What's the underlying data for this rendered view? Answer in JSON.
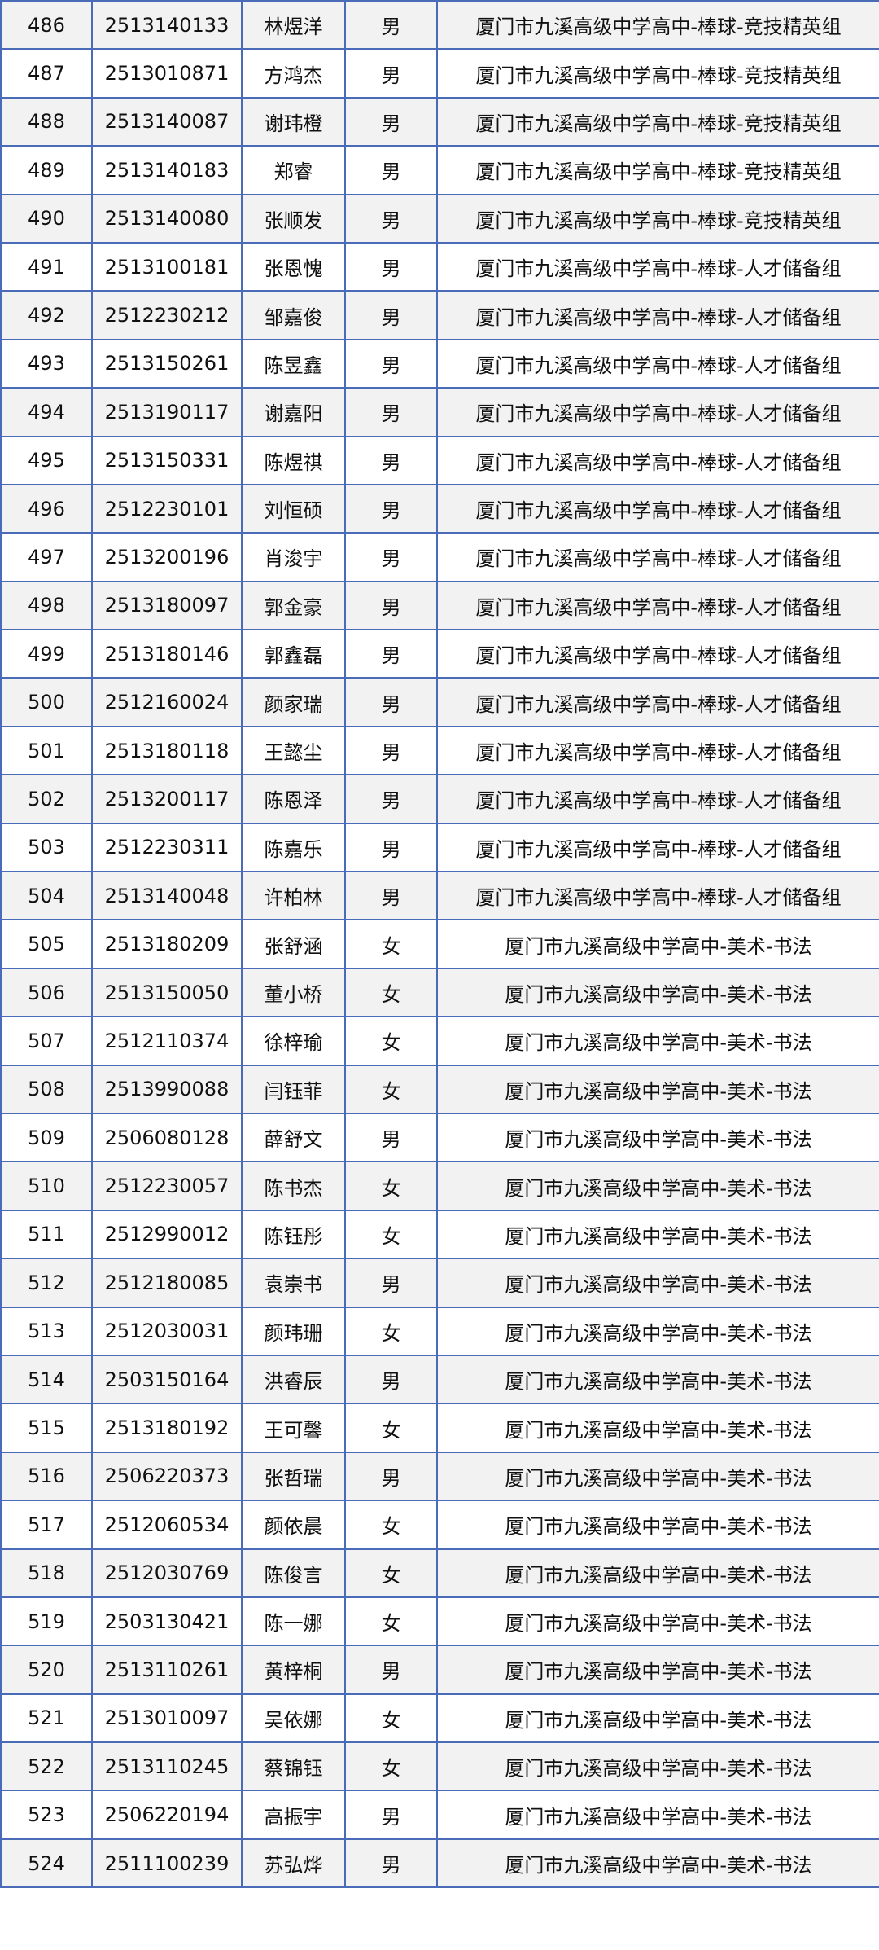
{
  "table": {
    "rows": [
      [
        "486",
        "2513140133",
        "林煜洋",
        "男",
        "厦门市九溪高级中学高中-棒球-竞技精英组"
      ],
      [
        "487",
        "2513010871",
        "方鸿杰",
        "男",
        "厦门市九溪高级中学高中-棒球-竞技精英组"
      ],
      [
        "488",
        "2513140087",
        "谢玮橙",
        "男",
        "厦门市九溪高级中学高中-棒球-竞技精英组"
      ],
      [
        "489",
        "2513140183",
        "郑睿",
        "男",
        "厦门市九溪高级中学高中-棒球-竞技精英组"
      ],
      [
        "490",
        "2513140080",
        "张顺发",
        "男",
        "厦门市九溪高级中学高中-棒球-竞技精英组"
      ],
      [
        "491",
        "2513100181",
        "张恩愧",
        "男",
        "厦门市九溪高级中学高中-棒球-人才储备组"
      ],
      [
        "492",
        "2512230212",
        "邹嘉俊",
        "男",
        "厦门市九溪高级中学高中-棒球-人才储备组"
      ],
      [
        "493",
        "2513150261",
        "陈昱鑫",
        "男",
        "厦门市九溪高级中学高中-棒球-人才储备组"
      ],
      [
        "494",
        "2513190117",
        "谢嘉阳",
        "男",
        "厦门市九溪高级中学高中-棒球-人才储备组"
      ],
      [
        "495",
        "2513150331",
        "陈煜祺",
        "男",
        "厦门市九溪高级中学高中-棒球-人才储备组"
      ],
      [
        "496",
        "2512230101",
        "刘恒硕",
        "男",
        "厦门市九溪高级中学高中-棒球-人才储备组"
      ],
      [
        "497",
        "2513200196",
        "肖浚宇",
        "男",
        "厦门市九溪高级中学高中-棒球-人才储备组"
      ],
      [
        "498",
        "2513180097",
        "郭金豪",
        "男",
        "厦门市九溪高级中学高中-棒球-人才储备组"
      ],
      [
        "499",
        "2513180146",
        "郭鑫磊",
        "男",
        "厦门市九溪高级中学高中-棒球-人才储备组"
      ],
      [
        "500",
        "2512160024",
        "颜家瑞",
        "男",
        "厦门市九溪高级中学高中-棒球-人才储备组"
      ],
      [
        "501",
        "2513180118",
        "王懿尘",
        "男",
        "厦门市九溪高级中学高中-棒球-人才储备组"
      ],
      [
        "502",
        "2513200117",
        "陈恩泽",
        "男",
        "厦门市九溪高级中学高中-棒球-人才储备组"
      ],
      [
        "503",
        "2512230311",
        "陈嘉乐",
        "男",
        "厦门市九溪高级中学高中-棒球-人才储备组"
      ],
      [
        "504",
        "2513140048",
        "许柏林",
        "男",
        "厦门市九溪高级中学高中-棒球-人才储备组"
      ],
      [
        "505",
        "2513180209",
        "张舒涵",
        "女",
        "厦门市九溪高级中学高中-美术-书法"
      ],
      [
        "506",
        "2513150050",
        "董小桥",
        "女",
        "厦门市九溪高级中学高中-美术-书法"
      ],
      [
        "507",
        "2512110374",
        "徐梓瑜",
        "女",
        "厦门市九溪高级中学高中-美术-书法"
      ],
      [
        "508",
        "2513990088",
        "闫钰菲",
        "女",
        "厦门市九溪高级中学高中-美术-书法"
      ],
      [
        "509",
        "2506080128",
        "薛舒文",
        "男",
        "厦门市九溪高级中学高中-美术-书法"
      ],
      [
        "510",
        "2512230057",
        "陈书杰",
        "女",
        "厦门市九溪高级中学高中-美术-书法"
      ],
      [
        "511",
        "2512990012",
        "陈钰彤",
        "女",
        "厦门市九溪高级中学高中-美术-书法"
      ],
      [
        "512",
        "2512180085",
        "袁崇书",
        "男",
        "厦门市九溪高级中学高中-美术-书法"
      ],
      [
        "513",
        "2512030031",
        "颜玮珊",
        "女",
        "厦门市九溪高级中学高中-美术-书法"
      ],
      [
        "514",
        "2503150164",
        "洪睿辰",
        "男",
        "厦门市九溪高级中学高中-美术-书法"
      ],
      [
        "515",
        "2513180192",
        "王可馨",
        "女",
        "厦门市九溪高级中学高中-美术-书法"
      ],
      [
        "516",
        "2506220373",
        "张哲瑞",
        "男",
        "厦门市九溪高级中学高中-美术-书法"
      ],
      [
        "517",
        "2512060534",
        "颜依晨",
        "女",
        "厦门市九溪高级中学高中-美术-书法"
      ],
      [
        "518",
        "2512030769",
        "陈俊言",
        "女",
        "厦门市九溪高级中学高中-美术-书法"
      ],
      [
        "519",
        "2503130421",
        "陈一娜",
        "女",
        "厦门市九溪高级中学高中-美术-书法"
      ],
      [
        "520",
        "2513110261",
        "黄梓桐",
        "男",
        "厦门市九溪高级中学高中-美术-书法"
      ],
      [
        "521",
        "2513010097",
        "吴依娜",
        "女",
        "厦门市九溪高级中学高中-美术-书法"
      ],
      [
        "522",
        "2513110245",
        "蔡锦钰",
        "女",
        "厦门市九溪高级中学高中-美术-书法"
      ],
      [
        "523",
        "2506220194",
        "高振宇",
        "男",
        "厦门市九溪高级中学高中-美术-书法"
      ],
      [
        "524",
        "2511100239",
        "苏弘烨",
        "男",
        "厦门市九溪高级中学高中-美术-书法"
      ]
    ]
  },
  "colors": {
    "border": "#4a6bb8",
    "stripe": "#f2f2f2"
  }
}
